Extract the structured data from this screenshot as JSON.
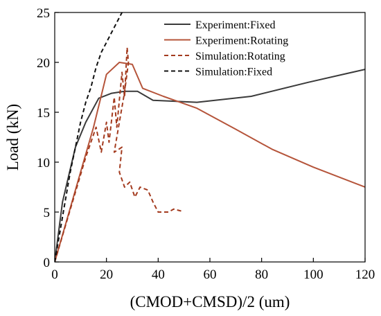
{
  "chart_data": {
    "type": "line",
    "xlabel": "(CMOD+CMSD)/2 (um)",
    "ylabel": "Load (kN)",
    "xlim": [
      0,
      120
    ],
    "ylim": [
      0,
      25
    ],
    "xticks": [
      0,
      20,
      40,
      60,
      80,
      100,
      120
    ],
    "yticks": [
      0,
      5,
      10,
      15,
      20,
      25
    ],
    "tick_labels_x": [
      "0",
      "20",
      "40",
      "60",
      "80",
      "100",
      "120"
    ],
    "tick_labels_y": [
      "0",
      "5",
      "10",
      "15",
      "20",
      "25"
    ],
    "grid": false,
    "legend_position": "top-right",
    "series": [
      {
        "name": "Experiment:Fixed",
        "color": "#3a3a3a",
        "dash": "solid",
        "points": [
          [
            0,
            0
          ],
          [
            3,
            6
          ],
          [
            8,
            11.5
          ],
          [
            12,
            14
          ],
          [
            17,
            16.4
          ],
          [
            22,
            16.9
          ],
          [
            27,
            17.1
          ],
          [
            32,
            17.1
          ],
          [
            38,
            16.2
          ],
          [
            55,
            16.0
          ],
          [
            76,
            16.6
          ],
          [
            98,
            18.0
          ],
          [
            120,
            19.3
          ]
        ]
      },
      {
        "name": "Experiment:Rotating",
        "color": "#b5543a",
        "dash": "solid",
        "points": [
          [
            0,
            0
          ],
          [
            5,
            4.5
          ],
          [
            10,
            9
          ],
          [
            15,
            13.5
          ],
          [
            20,
            18.8
          ],
          [
            25,
            20.0
          ],
          [
            30,
            19.8
          ],
          [
            34,
            17.4
          ],
          [
            42,
            16.6
          ],
          [
            55,
            15.4
          ],
          [
            70,
            13.3
          ],
          [
            84,
            11.3
          ],
          [
            100,
            9.5
          ],
          [
            120,
            7.5
          ]
        ]
      },
      {
        "name": "Simulation:Rotating",
        "color": "#a33a1e",
        "dash": "dashed",
        "points": [
          [
            0,
            0
          ],
          [
            4,
            3.5
          ],
          [
            8,
            7
          ],
          [
            12,
            10.5
          ],
          [
            16,
            13.5
          ],
          [
            18,
            11
          ],
          [
            20,
            14
          ],
          [
            21,
            12
          ],
          [
            23,
            16.5
          ],
          [
            24,
            13.5
          ],
          [
            26,
            19
          ],
          [
            27,
            16.5
          ],
          [
            28,
            21.5
          ],
          [
            28.5,
            20
          ],
          [
            27,
            17
          ],
          [
            25,
            14
          ],
          [
            23,
            11
          ],
          [
            26,
            11.5
          ],
          [
            25,
            9
          ],
          [
            27,
            7.5
          ],
          [
            29,
            8
          ],
          [
            31,
            6.5
          ],
          [
            33,
            7.5
          ],
          [
            36,
            7.2
          ],
          [
            38,
            6.0
          ],
          [
            40,
            5.0
          ],
          [
            44,
            5.0
          ],
          [
            46,
            5.3
          ],
          [
            49,
            5.1
          ]
        ]
      },
      {
        "name": "Simulation:Fixed",
        "color": "#111111",
        "dash": "dashed",
        "points": [
          [
            0,
            0
          ],
          [
            2,
            3
          ],
          [
            4,
            6
          ],
          [
            6,
            9
          ],
          [
            8,
            11.5
          ],
          [
            10,
            14
          ],
          [
            12,
            16
          ],
          [
            14,
            17.5
          ],
          [
            16,
            19.5
          ],
          [
            18,
            21
          ],
          [
            20,
            22
          ],
          [
            22,
            23
          ],
          [
            24,
            24
          ],
          [
            26,
            25
          ]
        ]
      }
    ]
  }
}
